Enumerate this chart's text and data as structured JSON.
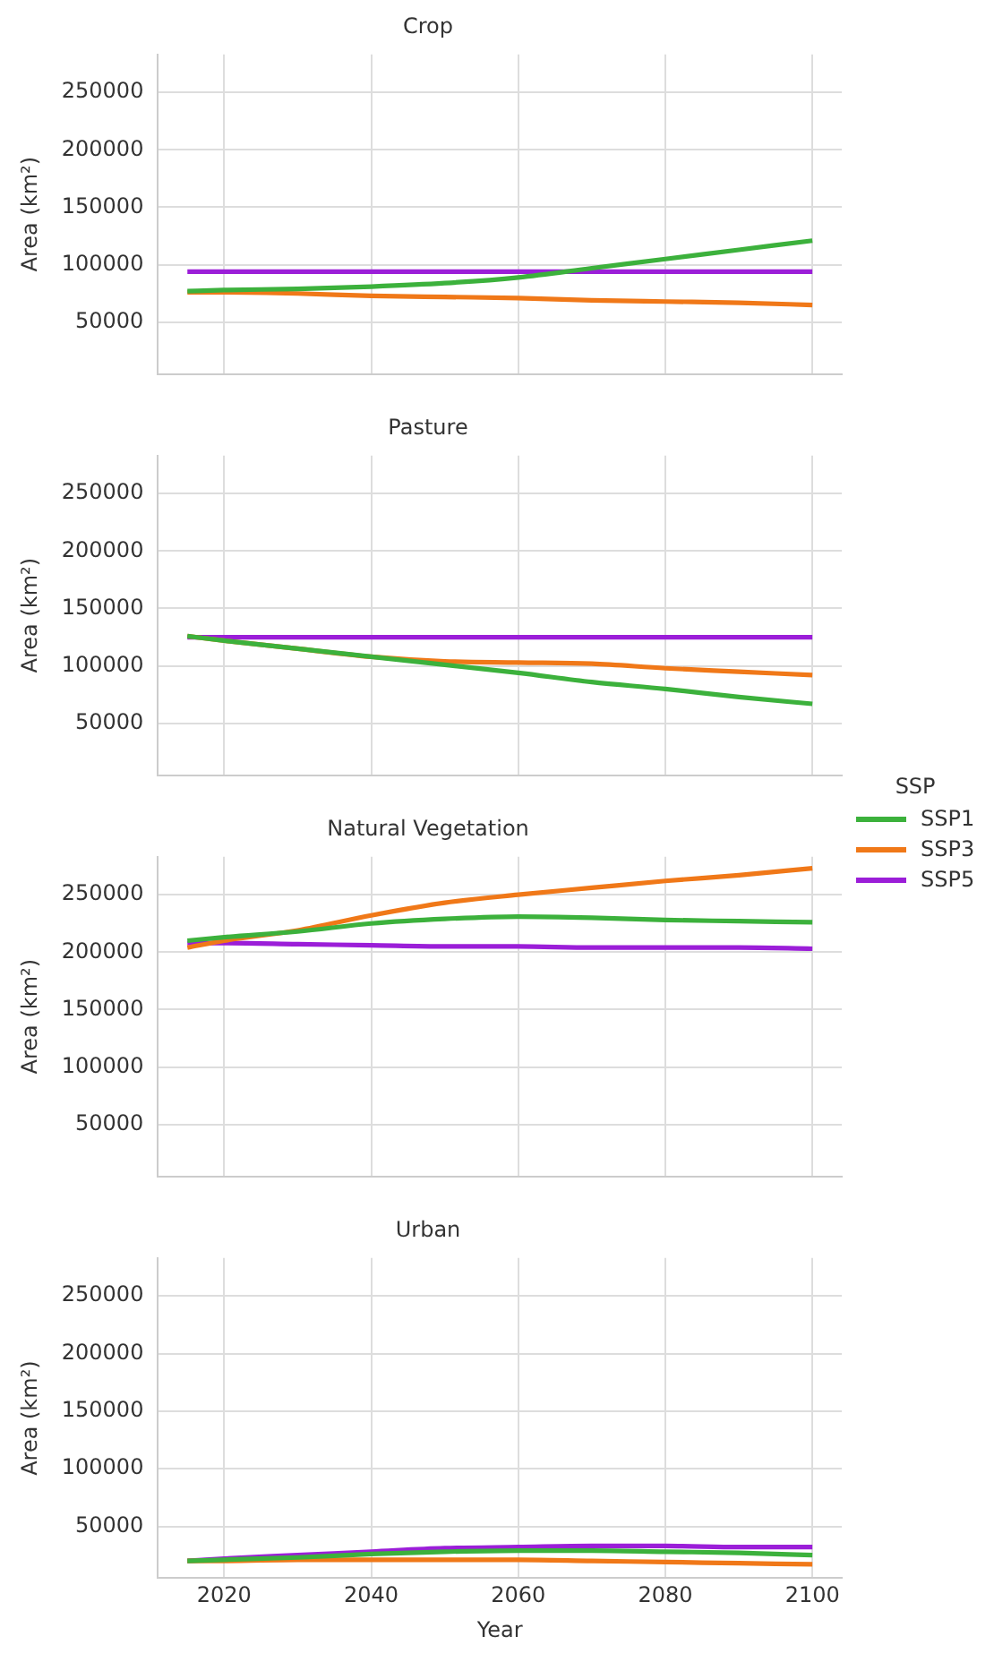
{
  "chart_data": [
    {
      "type": "line",
      "title": "Crop",
      "ylabel": "Area (km²)",
      "x": [
        2015,
        2020,
        2030,
        2040,
        2050,
        2060,
        2070,
        2080,
        2090,
        2100
      ],
      "xlim": [
        2011,
        2104
      ],
      "xticks": [
        2020,
        2040,
        2060,
        2080,
        2100
      ],
      "ylim": [
        5000,
        283000
      ],
      "yticks": [
        50000,
        100000,
        150000,
        200000,
        250000
      ],
      "grid": true,
      "tick_labels": "y",
      "marker": "none",
      "line_style": "solid",
      "legend": "right",
      "legend_title": "SSP",
      "series": [
        {
          "name": "SSP1",
          "color": "#3cb13c",
          "values": [
            77000,
            78000,
            79000,
            81000,
            84000,
            89000,
            97000,
            105000,
            113000,
            121000
          ]
        },
        {
          "name": "SSP3",
          "color": "#f07818",
          "values": [
            76000,
            76000,
            75000,
            73000,
            72000,
            71000,
            69000,
            68000,
            67000,
            65000
          ]
        },
        {
          "name": "SSP5",
          "color": "#9b1ed8",
          "values": [
            94000,
            94000,
            94000,
            94000,
            94000,
            94000,
            94000,
            94000,
            94000,
            94000
          ]
        }
      ]
    },
    {
      "type": "line",
      "title": "Pasture",
      "ylabel": "Area (km²)",
      "x": [
        2015,
        2020,
        2030,
        2040,
        2050,
        2060,
        2070,
        2080,
        2090,
        2100
      ],
      "xlim": [
        2011,
        2104
      ],
      "xticks": [
        2020,
        2040,
        2060,
        2080,
        2100
      ],
      "ylim": [
        5000,
        283000
      ],
      "yticks": [
        50000,
        100000,
        150000,
        200000,
        250000
      ],
      "grid": true,
      "tick_labels": "y",
      "marker": "none",
      "line_style": "solid",
      "series": [
        {
          "color": "#3cb13c",
          "values": [
            126000,
            122000,
            115000,
            108000,
            101000,
            94000,
            86000,
            80000,
            73000,
            67000
          ]
        },
        {
          "color": "#f07818",
          "values": [
            126000,
            122000,
            115000,
            108000,
            104000,
            103000,
            102000,
            98000,
            95000,
            92000
          ]
        },
        {
          "color": "#9b1ed8",
          "values": [
            125000,
            125000,
            125000,
            125000,
            125000,
            125000,
            125000,
            125000,
            125000,
            125000
          ]
        }
      ]
    },
    {
      "type": "line",
      "title": "Natural Vegetation",
      "ylabel": "Area (km²)",
      "x": [
        2015,
        2020,
        2030,
        2040,
        2050,
        2060,
        2070,
        2080,
        2090,
        2100
      ],
      "xlim": [
        2011,
        2104
      ],
      "xticks": [
        2020,
        2040,
        2060,
        2080,
        2100
      ],
      "ylim": [
        5000,
        283000
      ],
      "yticks": [
        50000,
        100000,
        150000,
        200000,
        250000
      ],
      "grid": true,
      "tick_labels": "y",
      "marker": "none",
      "line_style": "solid",
      "series": [
        {
          "color": "#3cb13c",
          "values": [
            210000,
            213000,
            218000,
            225000,
            229000,
            231000,
            230000,
            228000,
            227000,
            226000
          ]
        },
        {
          "color": "#f07818",
          "values": [
            204000,
            210000,
            219000,
            232000,
            243000,
            250000,
            256000,
            262000,
            267000,
            273000
          ]
        },
        {
          "color": "#9b1ed8",
          "values": [
            208000,
            208000,
            207000,
            206000,
            205000,
            205000,
            204000,
            204000,
            204000,
            203000
          ]
        }
      ]
    },
    {
      "type": "line",
      "title": "Urban",
      "xlabel": "Year",
      "ylabel": "Area (km²)",
      "x": [
        2015,
        2020,
        2030,
        2040,
        2050,
        2060,
        2070,
        2080,
        2090,
        2100
      ],
      "xlim": [
        2011,
        2104
      ],
      "xticks": [
        2020,
        2040,
        2060,
        2080,
        2100
      ],
      "ylim": [
        5000,
        283000
      ],
      "yticks": [
        50000,
        100000,
        150000,
        200000,
        250000
      ],
      "grid": true,
      "marker": "none",
      "line_style": "solid",
      "series": [
        {
          "color": "#3cb13c",
          "values": [
            20000,
            21000,
            23000,
            26000,
            28000,
            29000,
            29000,
            28000,
            27000,
            25000
          ]
        },
        {
          "color": "#f07818",
          "values": [
            20000,
            20000,
            21000,
            21000,
            21000,
            21000,
            20000,
            19000,
            18000,
            17000
          ]
        },
        {
          "color": "#9b1ed8",
          "values": [
            20000,
            22000,
            25000,
            28000,
            31000,
            32000,
            33000,
            33000,
            32000,
            32000
          ]
        }
      ]
    }
  ]
}
